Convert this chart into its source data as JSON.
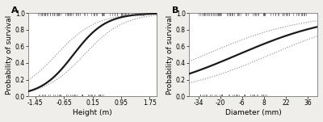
{
  "panel_A": {
    "label": "A",
    "xlabel": "Height (m)",
    "ylabel": "Probability of survival",
    "xlim": [
      -1.65,
      1.95
    ],
    "ylim": [
      0.0,
      1.0
    ],
    "xticks": [
      -1.45,
      -0.65,
      0.15,
      0.95,
      1.75
    ],
    "xtick_labels": [
      "-1.45",
      "-0.65",
      "0.15",
      "0.95",
      "1.75"
    ],
    "yticks": [
      0.0,
      0.2,
      0.4,
      0.6,
      0.8,
      1.0
    ],
    "ytick_labels": [
      "0.0",
      "0.2",
      "0.4",
      "0.6",
      "0.8",
      "1.0"
    ],
    "intercept": 0.85,
    "slope": 2.2,
    "ci_intercept_upper": 1.55,
    "ci_slope_upper": 1.8,
    "ci_intercept_lower": 0.15,
    "ci_slope_lower": 1.8
  },
  "panel_B": {
    "label": "B",
    "xlabel": "Diameter (mm)",
    "ylabel": "Probability of survival",
    "xlim": [
      -40,
      42
    ],
    "ylim": [
      0.0,
      1.0
    ],
    "xticks": [
      -34,
      -20,
      -6,
      8,
      22,
      36
    ],
    "xtick_labels": [
      "-34",
      "-20",
      "-6",
      "8",
      "22",
      "36"
    ],
    "yticks": [
      0.0,
      0.2,
      0.4,
      0.6,
      0.8,
      1.0
    ],
    "ytick_labels": [
      "0.0",
      "0.2",
      "0.4",
      "0.6",
      "0.8",
      "1.0"
    ],
    "intercept": 0.28,
    "slope": 0.032,
    "ci_intercept_upper": 0.95,
    "ci_slope_upper": 0.032,
    "ci_intercept_lower": -0.38,
    "ci_slope_lower": 0.032
  },
  "line_color": "#1a1a1a",
  "ci_color": "#888888",
  "bg_color": "#f0eeeb",
  "plot_bg": "#ffffff",
  "line_width": 1.6,
  "ci_linewidth": 0.8,
  "fontsize_label": 6.5,
  "fontsize_tick": 5.5,
  "fontsize_panel": 8
}
